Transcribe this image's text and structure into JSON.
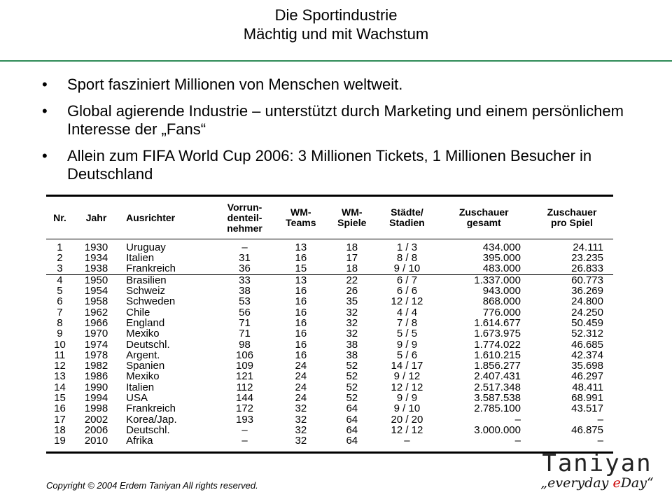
{
  "header": {
    "title": "Die Sportindustrie",
    "subtitle": "Mächtig und mit Wachstum"
  },
  "bullets": [
    "Sport fasziniert Millionen von Menschen weltweit.",
    "Global agierende Industrie – unterstützt durch Marketing und einem persönlichem Interesse der „Fans“",
    "Allein zum FIFA World Cup 2006: 3 Millionen Tickets, 1 Millionen Besucher in Deutschland"
  ],
  "table": {
    "headers": [
      "Nr.",
      "Jahr",
      "Ausrichter",
      "Vorrun-\ndenteil-\nnehmer",
      "WM-\nTeams",
      "WM-\nSpiele",
      "Städte/\nStadien",
      "Zuschauer\ngesamt",
      "Zuschauer\npro Spiel"
    ],
    "rows": [
      [
        "1",
        "1930",
        "Uruguay",
        "–",
        "13",
        "18",
        "1 / 3",
        "434.000",
        "24.111"
      ],
      [
        "2",
        "1934",
        "Italien",
        "31",
        "16",
        "17",
        "8 / 8",
        "395.000",
        "23.235"
      ],
      [
        "3",
        "1938",
        "Frankreich",
        "36",
        "15",
        "18",
        "9 / 10",
        "483.000",
        "26.833"
      ],
      [
        "4",
        "1950",
        "Brasilien",
        "33",
        "13",
        "22",
        "6 / 7",
        "1.337.000",
        "60.773"
      ],
      [
        "5",
        "1954",
        "Schweiz",
        "38",
        "16",
        "26",
        "6 / 6",
        "943.000",
        "36.269"
      ],
      [
        "6",
        "1958",
        "Schweden",
        "53",
        "16",
        "35",
        "12 / 12",
        "868.000",
        "24.800"
      ],
      [
        "7",
        "1962",
        "Chile",
        "56",
        "16",
        "32",
        "4 / 4",
        "776.000",
        "24.250"
      ],
      [
        "8",
        "1966",
        "England",
        "71",
        "16",
        "32",
        "7 / 8",
        "1.614.677",
        "50.459"
      ],
      [
        "9",
        "1970",
        "Mexiko",
        "71",
        "16",
        "32",
        "5 / 5",
        "1.673.975",
        "52.312"
      ],
      [
        "10",
        "1974",
        "Deutschl.",
        "98",
        "16",
        "38",
        "9 / 9",
        "1.774.022",
        "46.685"
      ],
      [
        "11",
        "1978",
        "Argent.",
        "106",
        "16",
        "38",
        "5 / 6",
        "1.610.215",
        "42.374"
      ],
      [
        "12",
        "1982",
        "Spanien",
        "109",
        "24",
        "52",
        "14 / 17",
        "1.856.277",
        "35.698"
      ],
      [
        "13",
        "1986",
        "Mexiko",
        "121",
        "24",
        "52",
        "9 / 12",
        "2.407.431",
        "46.297"
      ],
      [
        "14",
        "1990",
        "Italien",
        "112",
        "24",
        "52",
        "12 / 12",
        "2.517.348",
        "48.411"
      ],
      [
        "15",
        "1994",
        "USA",
        "144",
        "24",
        "52",
        "9 / 9",
        "3.587.538",
        "68.991"
      ],
      [
        "16",
        "1998",
        "Frankreich",
        "172",
        "32",
        "64",
        "9 / 10",
        "2.785.100",
        "43.517"
      ],
      [
        "17",
        "2002",
        "Korea/Jap.",
        "193",
        "32",
        "64",
        "20 / 20",
        "–",
        "–"
      ],
      [
        "18",
        "2006",
        "Deutschl.",
        "–",
        "32",
        "64",
        "12 / 12",
        "3.000.000",
        "46.875"
      ],
      [
        "19",
        "2010",
        "Afrika",
        "–",
        "32",
        "64",
        "–",
        "–",
        "–"
      ]
    ]
  },
  "footer": {
    "copyright": "Copyright © 2004 Erdem Taniyan All rights reserved."
  },
  "logo": {
    "name": "Taniyan",
    "slogan_prefix": "„everyday ",
    "slogan_e": "e",
    "slogan_suffix": "Day“"
  }
}
